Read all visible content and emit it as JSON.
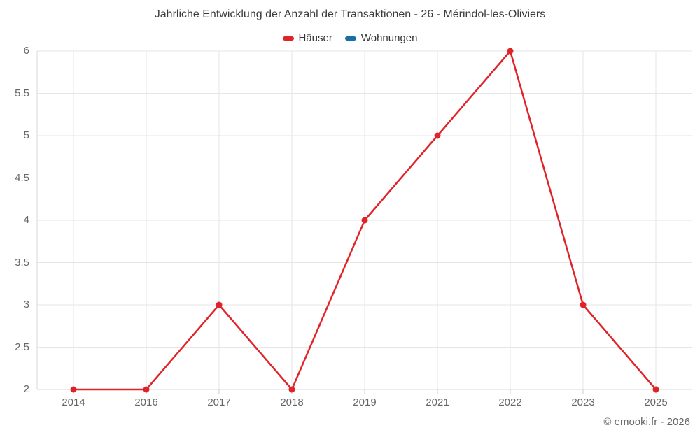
{
  "title": "Jährliche Entwicklung der Anzahl der Transaktionen - 26 - Mérindol-les-Oliviers",
  "footer": "© emooki.fr - 2026",
  "colors": {
    "haeuser_red": "#e02328",
    "wohnungen_blue": "#1670a5",
    "gridline": "#e6e6e6",
    "axis_line": "#d8d8d8",
    "tick_mark": "#cccccc",
    "title_text": "#3a3a3a",
    "label_text": "#666666"
  },
  "legend": {
    "items": [
      {
        "label": "Häuser",
        "color": "#e02328"
      },
      {
        "label": "Wohnungen",
        "color": "#1670a5"
      }
    ]
  },
  "chart_data": {
    "type": "line",
    "title": "Jährliche Entwicklung der Anzahl der Transaktionen - 26 - Mérindol-les-Oliviers",
    "categories": [
      "2014",
      "2016",
      "2017",
      "2018",
      "2019",
      "2021",
      "2022",
      "2023",
      "2025"
    ],
    "series": [
      {
        "name": "Häuser",
        "color": "#e02328",
        "values": [
          2,
          2,
          3,
          2,
          4,
          5,
          6,
          3,
          2
        ]
      },
      {
        "name": "Wohnungen",
        "color": "#1670a5",
        "values": []
      }
    ],
    "yticks": [
      2,
      2.5,
      3,
      3.5,
      4,
      4.5,
      5,
      5.5,
      6
    ],
    "ylim": [
      2,
      6
    ],
    "xlabel": "",
    "ylabel": "",
    "grid": true,
    "legend_position": "top",
    "marker_radius": 4.5,
    "line_width": 2.5
  }
}
